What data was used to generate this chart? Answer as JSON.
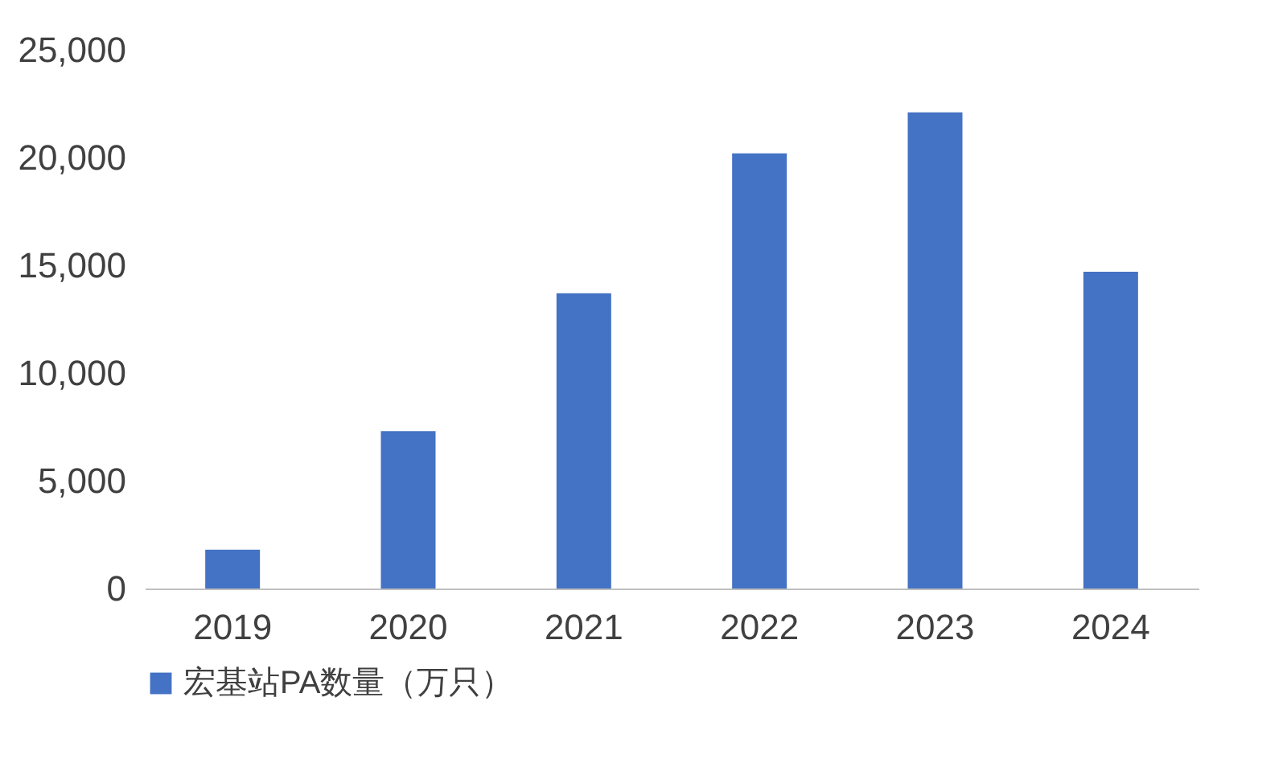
{
  "chart_data": {
    "type": "bar",
    "categories": [
      "2019",
      "2020",
      "2021",
      "2022",
      "2023",
      "2024"
    ],
    "series": [
      {
        "name": "宏基站PA数量（万只）",
        "color": "#4472c4",
        "values": [
          1800,
          7300,
          13700,
          20200,
          22100,
          14700
        ]
      }
    ],
    "ylim": [
      0,
      25000
    ],
    "yticks": [
      {
        "value": 0,
        "label": "0"
      },
      {
        "value": 5000,
        "label": "5,000"
      },
      {
        "value": 10000,
        "label": "10,000"
      },
      {
        "value": 15000,
        "label": "15,000"
      },
      {
        "value": 20000,
        "label": "20,000"
      },
      {
        "value": 25000,
        "label": "25,000"
      }
    ],
    "grid": false,
    "legend": "bottom"
  }
}
